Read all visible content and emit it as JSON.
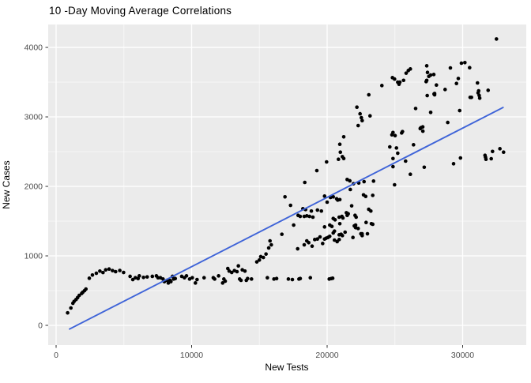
{
  "title": "10 -Day Moving Average Correlations",
  "chart_data": {
    "type": "scatter",
    "title": "10 -Day Moving Average Correlations",
    "xlabel": "New Tests",
    "ylabel": "New Cases",
    "xlim": [
      -583,
      34694
    ],
    "ylim": [
      -284,
      4330
    ],
    "x_ticks": [
      0,
      10000,
      20000,
      30000
    ],
    "y_ticks": [
      0,
      1000,
      2000,
      3000,
      4000
    ],
    "x_minor_ticks": [
      5000,
      15000,
      25000,
      35000
    ],
    "y_minor_ticks": [
      500,
      1500,
      2500,
      3500,
      4500
    ],
    "grid": true,
    "legend_position": "none",
    "panel_bg": "#EBEBEB",
    "grid_major_color": "#FFFFFF",
    "grid_minor_color": "#FFFFFF",
    "tick_label_color": "#4D4D4D",
    "point_color": "#000000",
    "point_radius": 2.3,
    "trend_line": {
      "color": "#3F64D8",
      "width": 1.9,
      "x1": 991,
      "y1": -53,
      "x2": 32984,
      "y2": 3136
    },
    "points": [
      [
        850,
        180
      ],
      [
        1090,
        250
      ],
      [
        1240,
        318
      ],
      [
        1330,
        345
      ],
      [
        1475,
        372
      ],
      [
        1590,
        400
      ],
      [
        1710,
        432
      ],
      [
        1890,
        460
      ],
      [
        1970,
        477
      ],
      [
        2100,
        500
      ],
      [
        2200,
        523
      ],
      [
        2450,
        678
      ],
      [
        2680,
        724
      ],
      [
        2970,
        750
      ],
      [
        3230,
        781
      ],
      [
        3460,
        760
      ],
      [
        3660,
        799
      ],
      [
        3910,
        810
      ],
      [
        4160,
        788
      ],
      [
        4390,
        773
      ],
      [
        4700,
        790
      ],
      [
        4980,
        761
      ],
      [
        5460,
        705
      ],
      [
        5660,
        659
      ],
      [
        5850,
        685
      ],
      [
        6050,
        674
      ],
      [
        6140,
        712
      ],
      [
        6450,
        690
      ],
      [
        6720,
        697
      ],
      [
        7100,
        705
      ],
      [
        7400,
        712
      ],
      [
        7700,
        685
      ],
      [
        7890,
        667
      ],
      [
        7990,
        629
      ],
      [
        8180,
        648
      ],
      [
        8280,
        610
      ],
      [
        8470,
        629
      ],
      [
        8670,
        667
      ],
      [
        7520,
        685
      ],
      [
        8400,
        648
      ],
      [
        8590,
        705
      ],
      [
        8790,
        674
      ],
      [
        9270,
        705
      ],
      [
        9470,
        685
      ],
      [
        9620,
        712
      ],
      [
        9850,
        667
      ],
      [
        10050,
        685
      ],
      [
        10280,
        610
      ],
      [
        10400,
        659
      ],
      [
        10920,
        685
      ],
      [
        11600,
        685
      ],
      [
        11700,
        667
      ],
      [
        11990,
        712
      ],
      [
        12290,
        610
      ],
      [
        12380,
        667
      ],
      [
        12480,
        636
      ],
      [
        12670,
        818
      ],
      [
        12770,
        781
      ],
      [
        12960,
        761
      ],
      [
        13160,
        788
      ],
      [
        13350,
        773
      ],
      [
        13450,
        856
      ],
      [
        13545,
        667
      ],
      [
        13645,
        648
      ],
      [
        13740,
        799
      ],
      [
        13935,
        781
      ],
      [
        14035,
        648
      ],
      [
        14130,
        674
      ],
      [
        14420,
        667
      ],
      [
        14810,
        913
      ],
      [
        15000,
        940
      ],
      [
        15100,
        989
      ],
      [
        15295,
        977
      ],
      [
        15490,
        1026
      ],
      [
        15690,
        1114
      ],
      [
        15785,
        1216
      ],
      [
        15880,
        1159
      ],
      [
        15590,
        685
      ],
      [
        16075,
        667
      ],
      [
        16270,
        674
      ],
      [
        17140,
        667
      ],
      [
        17435,
        659
      ],
      [
        17825,
        1102
      ],
      [
        17920,
        667
      ],
      [
        18015,
        674
      ],
      [
        18760,
        685
      ],
      [
        20155,
        667
      ],
      [
        20310,
        674
      ],
      [
        20410,
        678
      ],
      [
        16660,
        1311
      ],
      [
        16890,
        1849
      ],
      [
        17300,
        1727
      ],
      [
        17530,
        1443
      ],
      [
        17860,
        1583
      ],
      [
        18015,
        1568
      ],
      [
        18210,
        1678
      ],
      [
        18310,
        1568
      ],
      [
        18410,
        1667
      ],
      [
        18500,
        1576
      ],
      [
        18700,
        1568
      ],
      [
        18950,
        1557
      ],
      [
        18350,
        2057
      ],
      [
        18310,
        1159
      ],
      [
        18500,
        1216
      ],
      [
        18640,
        1190
      ],
      [
        18890,
        1140
      ],
      [
        19085,
        1235
      ],
      [
        19280,
        1242
      ],
      [
        19475,
        1273
      ],
      [
        19670,
        1178
      ],
      [
        19810,
        1242
      ],
      [
        19925,
        1254
      ],
      [
        20060,
        1265
      ],
      [
        20190,
        1281
      ],
      [
        20350,
        1424
      ],
      [
        20450,
        1330
      ],
      [
        20540,
        1227
      ],
      [
        20740,
        1205
      ],
      [
        20890,
        1235
      ],
      [
        20935,
        1463
      ],
      [
        21030,
        1311
      ],
      [
        21125,
        1292
      ],
      [
        21325,
        1341
      ],
      [
        21905,
        1265
      ],
      [
        22100,
        1443
      ],
      [
        22290,
        1394
      ],
      [
        22580,
        1318
      ],
      [
        22875,
        1481
      ],
      [
        22975,
        1318
      ],
      [
        23365,
        1455
      ],
      [
        19285,
        1659
      ],
      [
        19575,
        1645
      ],
      [
        18835,
        1645
      ],
      [
        19810,
        1417
      ],
      [
        20195,
        1443
      ],
      [
        20540,
        1356
      ],
      [
        20890,
        1303
      ],
      [
        20450,
        1538
      ],
      [
        20585,
        1519
      ],
      [
        21090,
        1568
      ],
      [
        21165,
        1545
      ],
      [
        20890,
        1557
      ],
      [
        21420,
        1621
      ],
      [
        21555,
        1606
      ],
      [
        21480,
        1583
      ],
      [
        22005,
        1432
      ],
      [
        22100,
        1406
      ],
      [
        22060,
        1583
      ],
      [
        22140,
        1557
      ],
      [
        22490,
        1318
      ],
      [
        22585,
        1292
      ],
      [
        23070,
        1670
      ],
      [
        23225,
        1645
      ],
      [
        23265,
        1463
      ],
      [
        19810,
        1860
      ],
      [
        20000,
        1773
      ],
      [
        20250,
        1841
      ],
      [
        20450,
        1849
      ],
      [
        20700,
        1822
      ],
      [
        20780,
        1803
      ],
      [
        20935,
        1810
      ],
      [
        21480,
        2099
      ],
      [
        21675,
        2080
      ],
      [
        21710,
        1955
      ],
      [
        21810,
        1720
      ],
      [
        21945,
        2038
      ],
      [
        22335,
        2049
      ],
      [
        22685,
        1878
      ],
      [
        22845,
        1856
      ],
      [
        22725,
        2068
      ],
      [
        23365,
        1871
      ],
      [
        23425,
        2076
      ],
      [
        19240,
        2227
      ],
      [
        19960,
        2352
      ],
      [
        20835,
        2390
      ],
      [
        20975,
        2492
      ],
      [
        21125,
        2428
      ],
      [
        21225,
        2401
      ],
      [
        24625,
        2568
      ],
      [
        24860,
        2401
      ],
      [
        24860,
        2284
      ],
      [
        24975,
        2023
      ],
      [
        25115,
        2553
      ],
      [
        25210,
        2477
      ],
      [
        25790,
        2364
      ],
      [
        26140,
        2174
      ],
      [
        26375,
        2599
      ],
      [
        27165,
        2276
      ],
      [
        29330,
        2326
      ],
      [
        29840,
        2409
      ],
      [
        31650,
        2447
      ],
      [
        31690,
        2420
      ],
      [
        31720,
        2390
      ],
      [
        32110,
        2398
      ],
      [
        32205,
        2503
      ],
      [
        32750,
        2542
      ],
      [
        33020,
        2492
      ],
      [
        20935,
        2606
      ],
      [
        21225,
        2713
      ],
      [
        24780,
        2742
      ],
      [
        25015,
        2731
      ],
      [
        25500,
        2769
      ],
      [
        26870,
        2832
      ],
      [
        27065,
        2795
      ],
      [
        26920,
        2845
      ],
      [
        27055,
        2856
      ],
      [
        24860,
        2776
      ],
      [
        25560,
        2788
      ],
      [
        28900,
        2920
      ],
      [
        22197,
        3140
      ],
      [
        22430,
        3045
      ],
      [
        22525,
        2989
      ],
      [
        22585,
        2947
      ],
      [
        22290,
        2875
      ],
      [
        23165,
        3015
      ],
      [
        26530,
        3121
      ],
      [
        29780,
        3091
      ],
      [
        27640,
        3065
      ],
      [
        30555,
        3281
      ],
      [
        30650,
        3281
      ],
      [
        23075,
        3318
      ],
      [
        24040,
        3451
      ],
      [
        24820,
        3565
      ],
      [
        24975,
        3545
      ],
      [
        25210,
        3500
      ],
      [
        25305,
        3469
      ],
      [
        25365,
        3500
      ],
      [
        25640,
        3526
      ],
      [
        25830,
        3629
      ],
      [
        25990,
        3667
      ],
      [
        26140,
        3690
      ],
      [
        27350,
        3735
      ],
      [
        27405,
        3640
      ],
      [
        27505,
        3583
      ],
      [
        27350,
        3526
      ],
      [
        27305,
        3508
      ],
      [
        27890,
        3330
      ],
      [
        27385,
        3307
      ],
      [
        27930,
        3318
      ],
      [
        29095,
        3705
      ],
      [
        29910,
        3773
      ],
      [
        30165,
        3781
      ],
      [
        30515,
        3708
      ],
      [
        27870,
        3610
      ],
      [
        27640,
        3602
      ],
      [
        29680,
        3553
      ],
      [
        28065,
        3458
      ],
      [
        29545,
        3481
      ],
      [
        28705,
        3394
      ],
      [
        31095,
        3489
      ],
      [
        27930,
        3337
      ],
      [
        31180,
        3375
      ],
      [
        31140,
        3345
      ],
      [
        31220,
        3308
      ],
      [
        31260,
        3270
      ],
      [
        31880,
        3383
      ],
      [
        32495,
        4121
      ]
    ]
  }
}
